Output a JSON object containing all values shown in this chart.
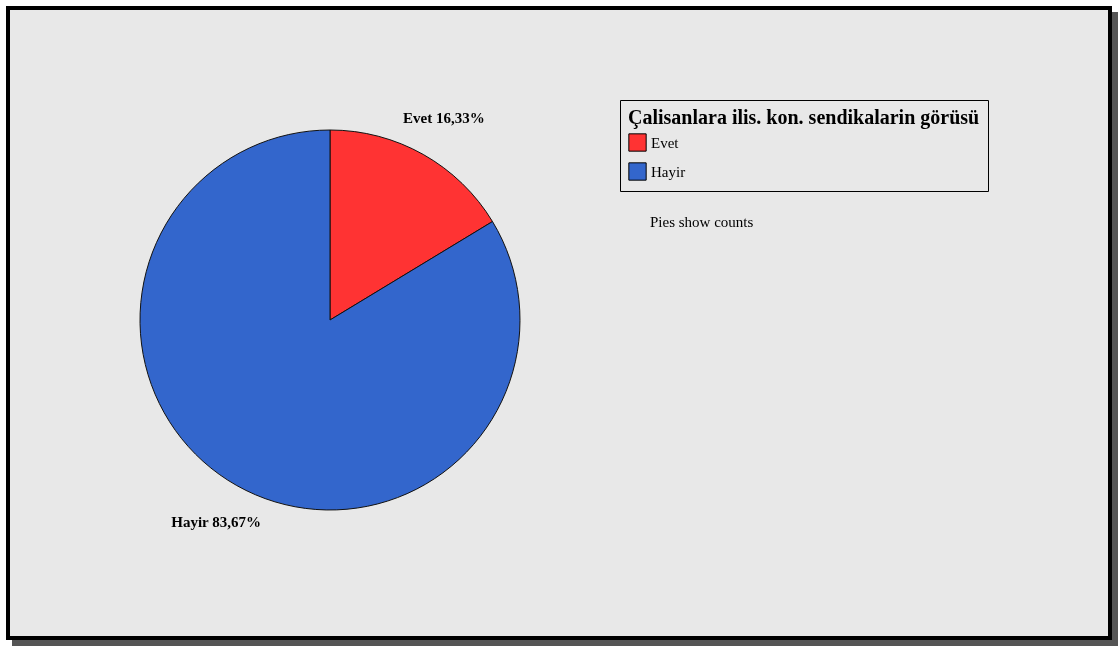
{
  "chart_data": {
    "type": "pie",
    "legend_title": "Çalisanlara ilis. kon. sendikalarin görüsü",
    "categories": [
      "Evet",
      "Hayir"
    ],
    "values": [
      16.33,
      83.67
    ],
    "value_labels": [
      "16,33%",
      "83,67%"
    ],
    "colors": [
      "#ff3333",
      "#3366cc"
    ],
    "legend": "top right",
    "annotations": [
      "Pies show counts"
    ]
  }
}
